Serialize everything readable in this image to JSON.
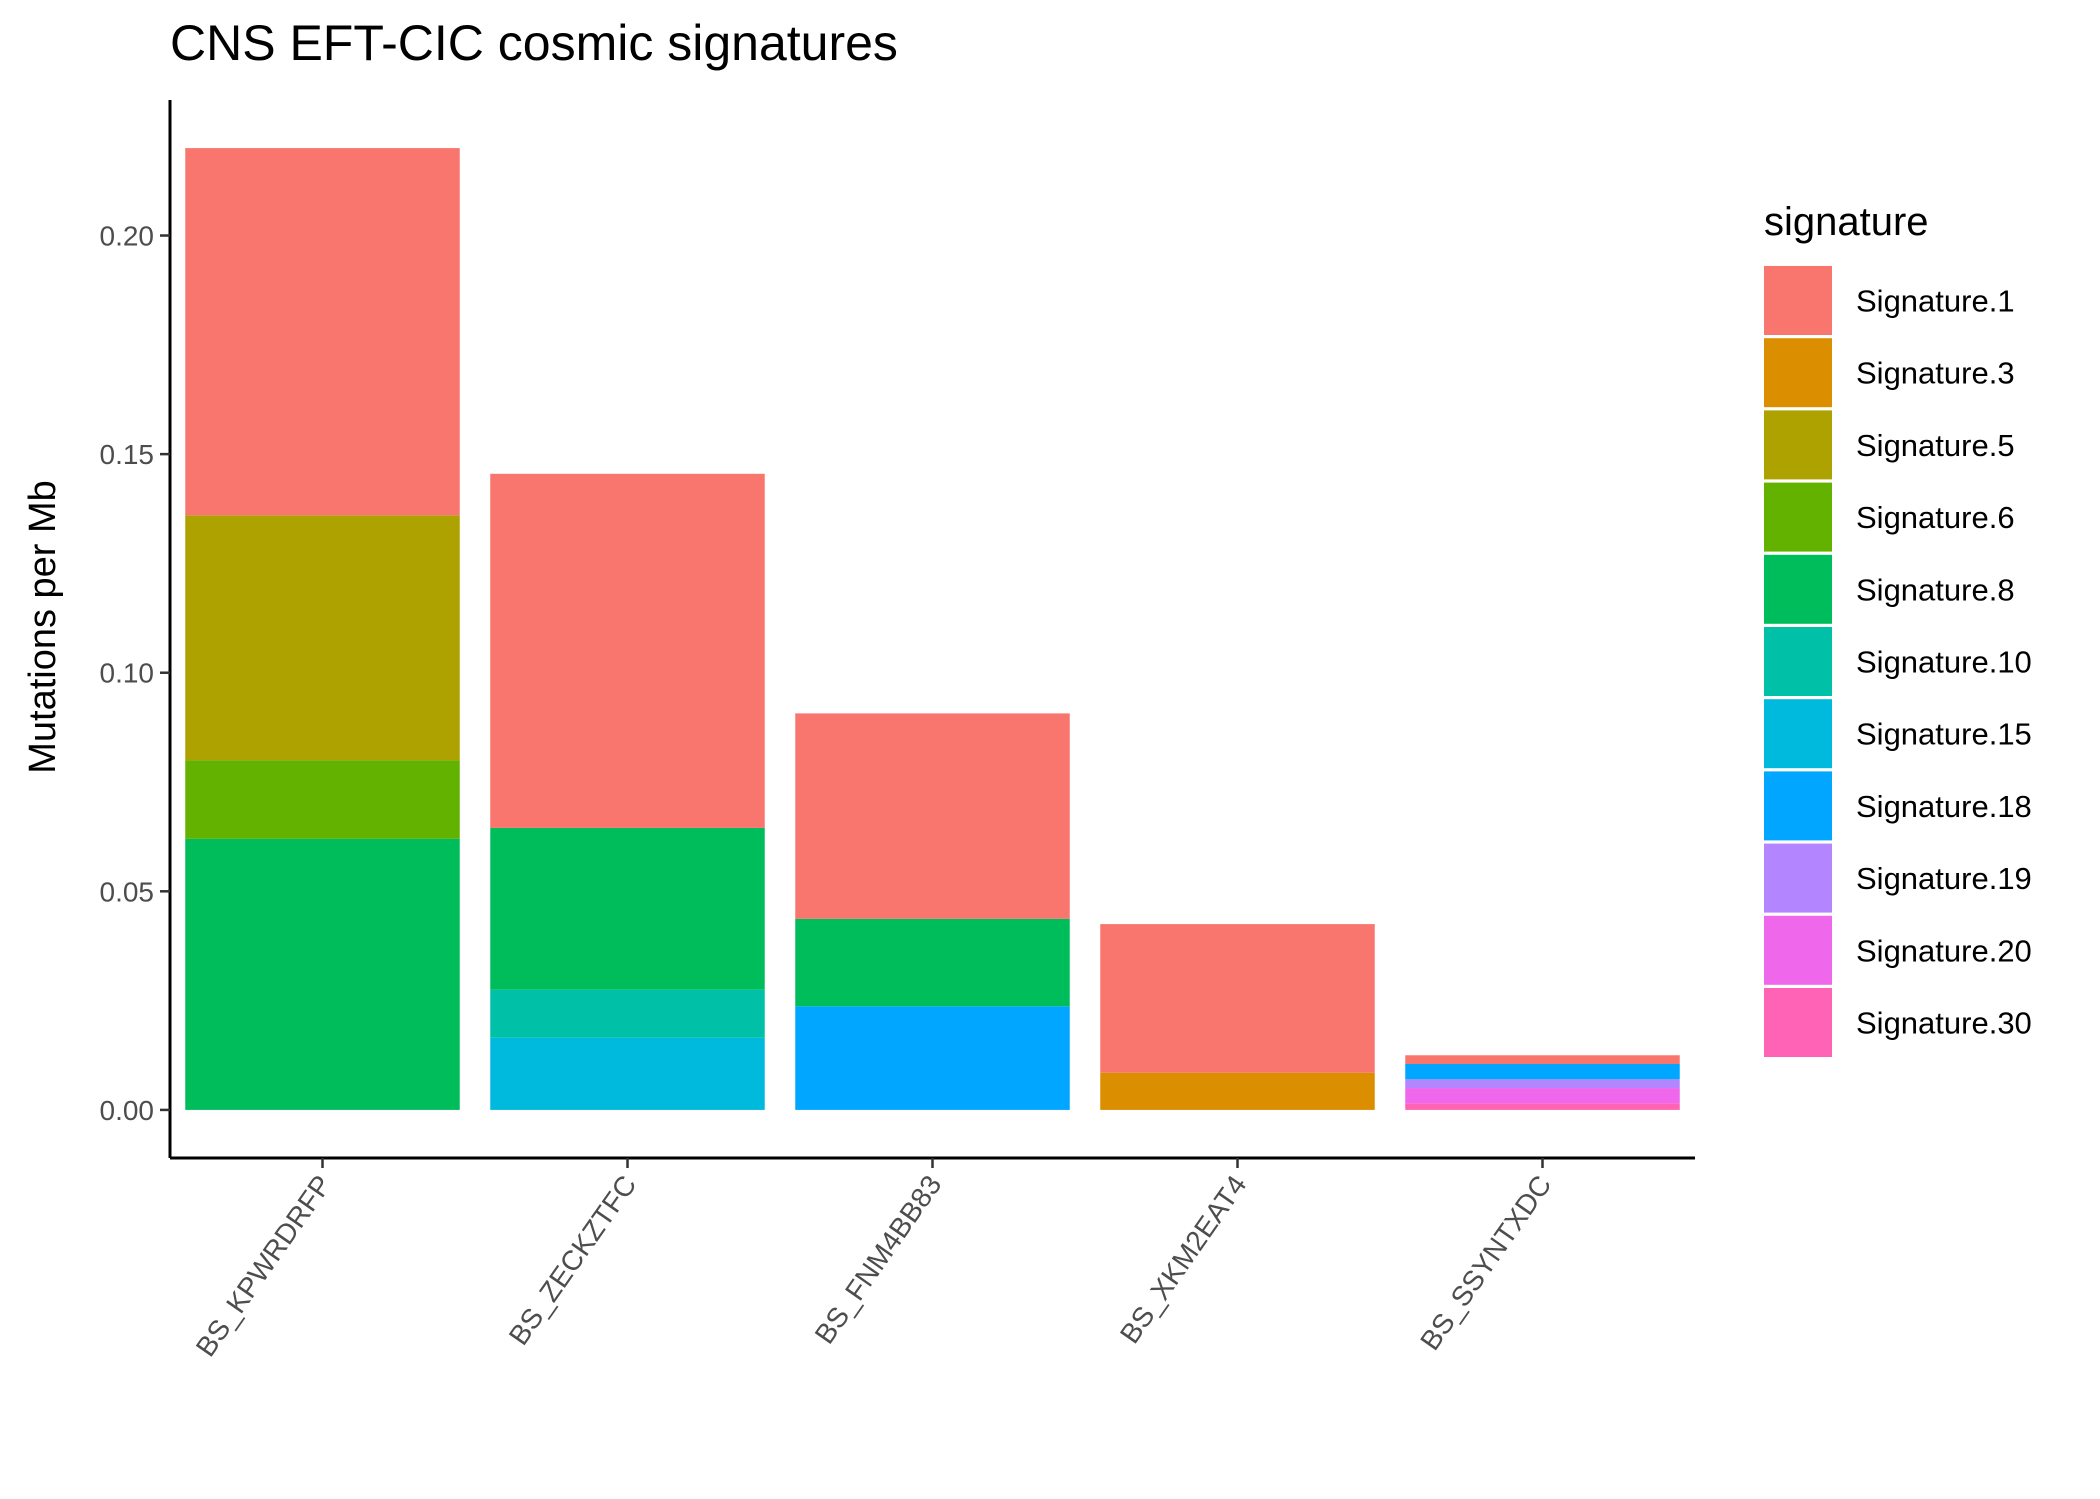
{
  "chart_data": {
    "type": "bar",
    "stacked": true,
    "title": "CNS EFT-CIC cosmic signatures",
    "xlabel": "",
    "ylabel": "Mutations per Mb",
    "ylim": [
      -0.011,
      0.231
    ],
    "yticks": [
      0.0,
      0.05,
      0.1,
      0.15,
      0.2
    ],
    "ytick_labels": [
      "0.00",
      "0.05",
      "0.10",
      "0.15",
      "0.20"
    ],
    "categories": [
      "BS_KPWRDRFP",
      "BS_ZECKZTFC",
      "BS_FNM4BB83",
      "BS_XKM2EAT4",
      "BS_SSYNTXDC"
    ],
    "legend_title": "signature",
    "legend_position": "right",
    "grid": false,
    "series": [
      {
        "name": "Signature.1",
        "color": "#F8766D",
        "values": [
          0.084,
          0.081,
          0.047,
          0.034,
          0.002
        ]
      },
      {
        "name": "Signature.3",
        "color": "#DB8E00",
        "values": [
          0,
          0,
          0,
          0.0085,
          0
        ]
      },
      {
        "name": "Signature.5",
        "color": "#AEA200",
        "values": [
          0.056,
          0,
          0,
          0,
          0
        ]
      },
      {
        "name": "Signature.6",
        "color": "#64B200",
        "values": [
          0.018,
          0,
          0,
          0,
          0
        ]
      },
      {
        "name": "Signature.8",
        "color": "#00BD5C",
        "values": [
          0.062,
          0.037,
          0.02,
          0,
          0
        ]
      },
      {
        "name": "Signature.10",
        "color": "#00C1A7",
        "values": [
          0,
          0.011,
          0,
          0,
          0
        ]
      },
      {
        "name": "Signature.15",
        "color": "#00BADE",
        "values": [
          0,
          0.0165,
          0,
          0,
          0
        ]
      },
      {
        "name": "Signature.18",
        "color": "#00A6FF",
        "values": [
          0,
          0,
          0.0237,
          0,
          0.0035
        ]
      },
      {
        "name": "Signature.19",
        "color": "#B385FF",
        "values": [
          0,
          0,
          0,
          0,
          0.002
        ]
      },
      {
        "name": "Signature.20",
        "color": "#EF67EB",
        "values": [
          0,
          0,
          0,
          0,
          0.0035
        ]
      },
      {
        "name": "Signature.30",
        "color": "#FF63B6",
        "values": [
          0,
          0,
          0,
          0,
          0.0015
        ]
      }
    ]
  }
}
